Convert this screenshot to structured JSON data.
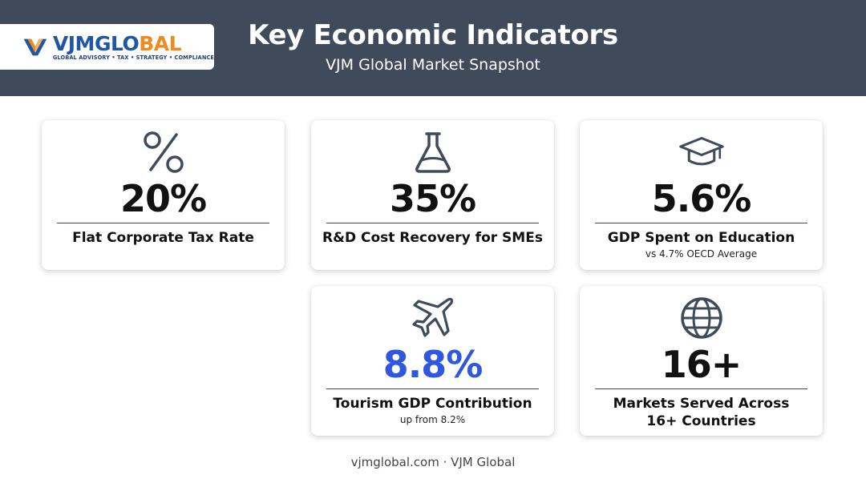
{
  "header": {
    "logo": {
      "wordmark_vjm": "VJM",
      "wordmark_glo": "GLO",
      "wordmark_bal": "BAL",
      "tagline": "GLOBAL ADVISORY • TAX • STRATEGY • COMPLIANCE"
    },
    "title": "Key Economic Indicators",
    "subtitle": "VJM Global Market Snapshot"
  },
  "cards": [
    {
      "icon": "percent-icon",
      "value": "20%",
      "label": "Flat Corporate Tax Rate",
      "note": ""
    },
    {
      "icon": "flask-icon",
      "value": "35%",
      "label": "R&D Cost Recovery for SMEs",
      "note": ""
    },
    {
      "icon": "graduation-cap-icon",
      "value": "5.6%",
      "label": "GDP Spent on Education",
      "note": "vs 4.7% OECD Average"
    },
    {
      "icon": "airplane-icon",
      "value": "8.8%",
      "label": "Tourism GDP Contribution",
      "note": "up from 8.2%"
    },
    {
      "icon": "globe-icon",
      "value": "16+",
      "label": "Markets Served Across 16+ Countries",
      "note": ""
    }
  ],
  "footer": {
    "text": "vjmglobal.com · VJM Global"
  },
  "colors": {
    "header_bg": "#3f4a5a",
    "accent_value": "#2f57e0",
    "logo_blue": "#1f57a8",
    "logo_orange": "#f08a1c",
    "icon_stroke": "#3f4a5a"
  }
}
